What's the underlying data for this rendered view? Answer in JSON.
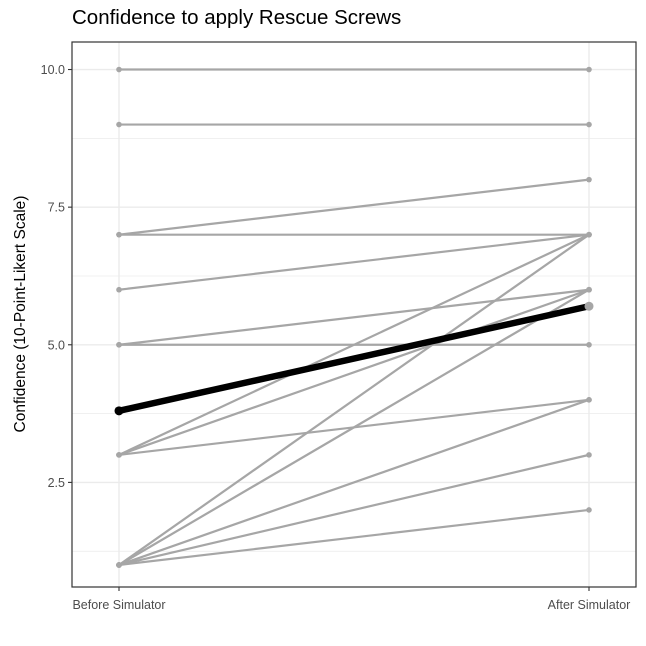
{
  "chart_data": {
    "type": "line",
    "title": "Confidence to apply Rescue Screws",
    "xlabel": "",
    "ylabel": "Confidence (10-Point-Likert Scale)",
    "categories": [
      "Before Simulator",
      "After Simulator"
    ],
    "ylim": [
      0.6,
      10.5
    ],
    "yticks": [
      2.5,
      5.0,
      7.5,
      10.0
    ],
    "ytick_labels": [
      "2.5",
      "5.0",
      "7.5",
      "10.0"
    ],
    "grid": true,
    "colors": {
      "participants": "#a6a6a6",
      "mean": "#000000",
      "gridline": "#ebebeb",
      "panel_border": "#333333"
    },
    "participants": [
      [
        10,
        10
      ],
      [
        9,
        9
      ],
      [
        7,
        8
      ],
      [
        7,
        7
      ],
      [
        6,
        7
      ],
      [
        5,
        6
      ],
      [
        5,
        5
      ],
      [
        3,
        7
      ],
      [
        3,
        6
      ],
      [
        3,
        4
      ],
      [
        1,
        7
      ],
      [
        1,
        6
      ],
      [
        1,
        4
      ],
      [
        1,
        3
      ],
      [
        1,
        2
      ]
    ],
    "mean": [
      3.8,
      5.7
    ]
  }
}
